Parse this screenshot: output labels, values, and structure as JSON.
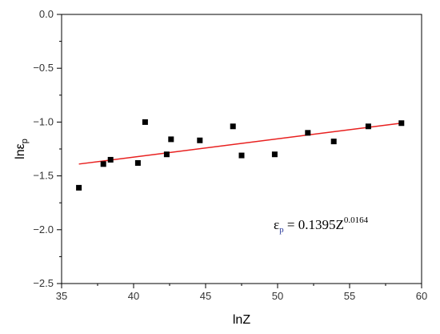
{
  "chart_data": {
    "type": "scatter",
    "xlabel": "lnZ",
    "ylabel": {
      "main": "lnε",
      "sub": "p"
    },
    "xlim": [
      35,
      60
    ],
    "ylim": [
      -2.5,
      0.0
    ],
    "x_ticks": [
      35,
      40,
      45,
      50,
      55,
      60
    ],
    "y_ticks": [
      0.0,
      -0.5,
      -1.0,
      -1.5,
      -2.0,
      -2.5
    ],
    "x_tick_labels": [
      "35",
      "40",
      "45",
      "50",
      "55",
      "60"
    ],
    "y_tick_labels": [
      "0.0",
      "−0.5",
      "−1.0",
      "−1.5",
      "−2.0",
      "−2.5"
    ],
    "grid": false,
    "points": [
      {
        "x": 36.2,
        "y": -1.61
      },
      {
        "x": 37.9,
        "y": -1.39
      },
      {
        "x": 38.4,
        "y": -1.35
      },
      {
        "x": 40.3,
        "y": -1.38
      },
      {
        "x": 40.8,
        "y": -1.0
      },
      {
        "x": 42.3,
        "y": -1.3
      },
      {
        "x": 42.6,
        "y": -1.16
      },
      {
        "x": 44.6,
        "y": -1.17
      },
      {
        "x": 46.9,
        "y": -1.04
      },
      {
        "x": 47.5,
        "y": -1.31
      },
      {
        "x": 49.8,
        "y": -1.3
      },
      {
        "x": 52.1,
        "y": -1.1
      },
      {
        "x": 53.9,
        "y": -1.18
      },
      {
        "x": 56.3,
        "y": -1.04
      },
      {
        "x": 58.6,
        "y": -1.01
      }
    ],
    "fit_line": {
      "x": [
        36.2,
        58.6
      ],
      "y": [
        -1.39,
        -1.01
      ],
      "color": "#e8201f"
    },
    "point_color": "#000000",
    "annotation": {
      "base": "ε",
      "sub": "p",
      "rest": " = 0.1395Z",
      "sup": "0.0164",
      "sub_color": "#2a3a9a"
    }
  }
}
